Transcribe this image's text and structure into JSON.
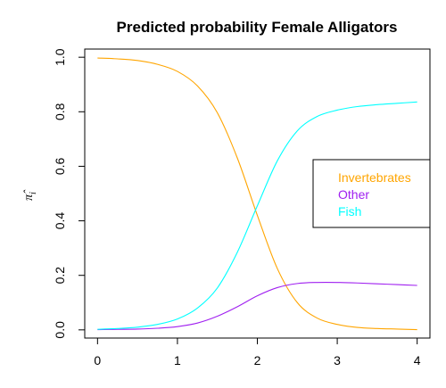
{
  "chart_data": {
    "type": "line",
    "title": "Predicted probability Female Alligators",
    "xlabel": "",
    "ylabel": "π̂",
    "ylabel_subscript": "i",
    "xlim": [
      -0.16,
      4.16
    ],
    "ylim": [
      -0.03,
      1.03
    ],
    "x_ticks": [
      0,
      1,
      2,
      3,
      4
    ],
    "y_ticks": [
      0.0,
      0.2,
      0.4,
      0.6,
      0.8,
      1.0
    ],
    "x_tick_labels": [
      "0",
      "1",
      "2",
      "3",
      "4"
    ],
    "y_tick_labels": [
      "0.0",
      "0.2",
      "0.4",
      "0.6",
      "0.8",
      "1.0"
    ],
    "legend_position": "right",
    "grid": false,
    "x": [
      0,
      0.25,
      0.5,
      0.75,
      1.0,
      1.25,
      1.5,
      1.75,
      2.0,
      2.25,
      2.5,
      2.75,
      3.0,
      3.25,
      3.5,
      3.75,
      4.0
    ],
    "series": [
      {
        "name": "Invertebrates",
        "color": "#FFA500",
        "values": [
          0.997,
          0.994,
          0.988,
          0.974,
          0.948,
          0.895,
          0.796,
          0.63,
          0.42,
          0.225,
          0.1,
          0.043,
          0.02,
          0.009,
          0.005,
          0.003,
          0.001
        ]
      },
      {
        "name": "Other",
        "color": "#A020F0",
        "values": [
          0.001,
          0.002,
          0.003,
          0.006,
          0.012,
          0.025,
          0.05,
          0.085,
          0.125,
          0.155,
          0.17,
          0.174,
          0.174,
          0.172,
          0.169,
          0.166,
          0.163
        ]
      },
      {
        "name": "Fish",
        "color": "#00FFFF",
        "values": [
          0.002,
          0.005,
          0.01,
          0.02,
          0.04,
          0.08,
          0.154,
          0.285,
          0.455,
          0.62,
          0.73,
          0.783,
          0.806,
          0.819,
          0.826,
          0.831,
          0.836
        ]
      }
    ]
  }
}
